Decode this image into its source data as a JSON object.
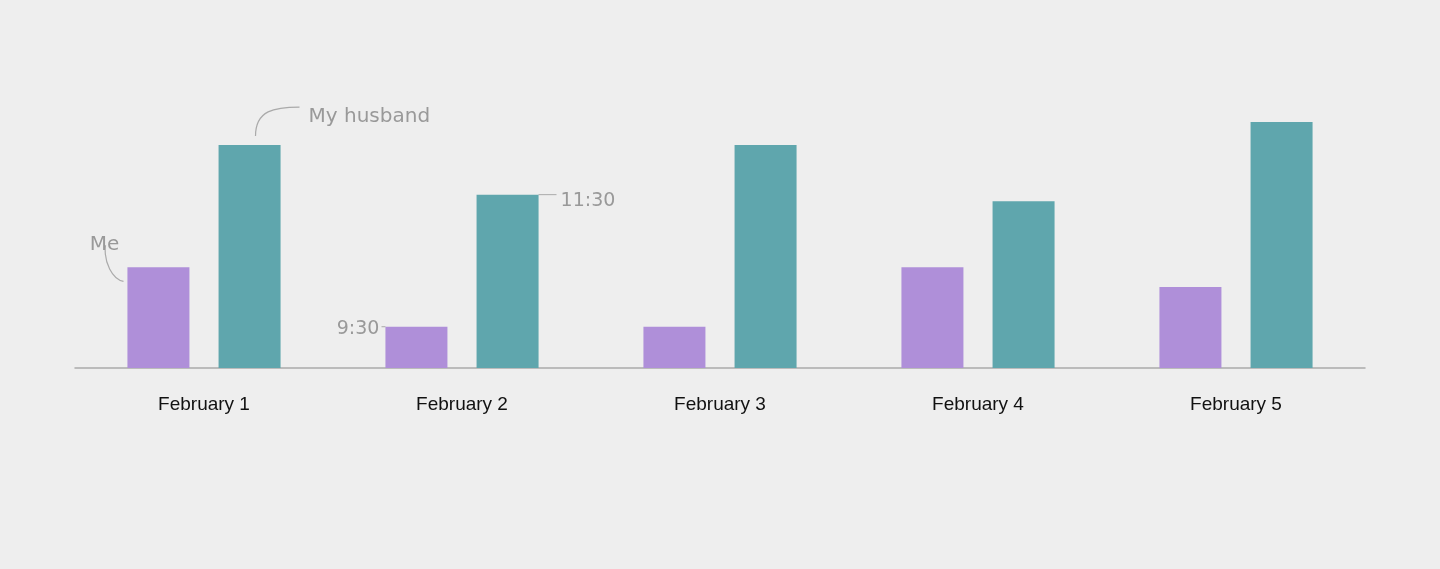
{
  "chart_data": {
    "type": "bar",
    "categories": [
      "February 1",
      "February 2",
      "February 3",
      "February 4",
      "February 5"
    ],
    "series": [
      {
        "name": "Me",
        "color": "#af8fd9",
        "values": [
          10.4,
          9.5,
          9.5,
          10.4,
          10.1
        ],
        "value_labels": [
          null,
          "9:30",
          null,
          null,
          null
        ]
      },
      {
        "name": "My husband",
        "color": "#5fa6ad",
        "values": [
          12.25,
          11.5,
          12.25,
          11.4,
          12.6
        ],
        "value_labels": [
          null,
          "11:30",
          null,
          null,
          null
        ]
      }
    ],
    "ylim": [
      8.875,
      12.6
    ],
    "tick_labels": "x"
  }
}
